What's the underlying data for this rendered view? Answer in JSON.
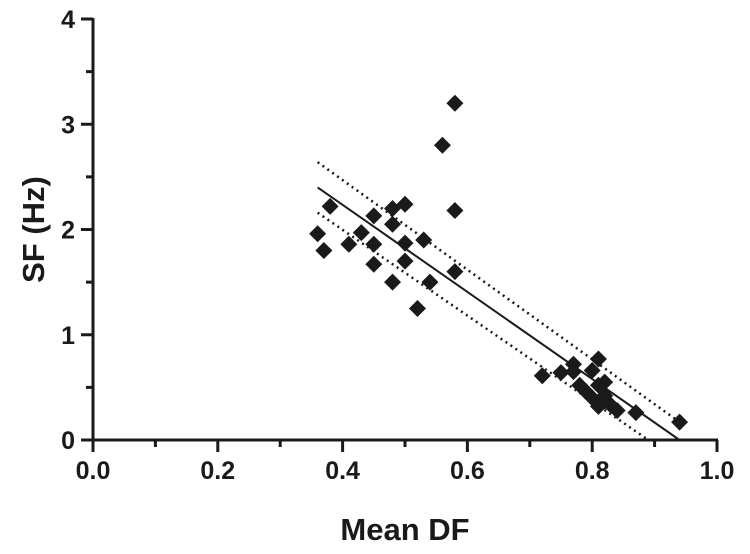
{
  "chart_data": {
    "type": "scatter",
    "xlabel": "Mean DF",
    "ylabel": "SF (Hz)",
    "xlim": [
      0.0,
      1.0
    ],
    "ylim": [
      0,
      4
    ],
    "x_ticks": [
      "0.0",
      "0.2",
      "0.4",
      "0.6",
      "0.8",
      "1.0"
    ],
    "y_ticks": [
      "0",
      "1",
      "2",
      "3",
      "4"
    ],
    "grid": false,
    "legend": "none",
    "marker": "diamond",
    "color": "#1a1a1a",
    "points": [
      {
        "x": 0.36,
        "y": 1.96
      },
      {
        "x": 0.37,
        "y": 1.8
      },
      {
        "x": 0.38,
        "y": 2.22
      },
      {
        "x": 0.41,
        "y": 1.86
      },
      {
        "x": 0.43,
        "y": 1.97
      },
      {
        "x": 0.45,
        "y": 2.13
      },
      {
        "x": 0.45,
        "y": 1.86
      },
      {
        "x": 0.45,
        "y": 1.67
      },
      {
        "x": 0.48,
        "y": 2.2
      },
      {
        "x": 0.48,
        "y": 2.05
      },
      {
        "x": 0.48,
        "y": 1.5
      },
      {
        "x": 0.5,
        "y": 2.24
      },
      {
        "x": 0.5,
        "y": 1.87
      },
      {
        "x": 0.5,
        "y": 1.7
      },
      {
        "x": 0.52,
        "y": 1.25
      },
      {
        "x": 0.53,
        "y": 1.9
      },
      {
        "x": 0.54,
        "y": 1.5
      },
      {
        "x": 0.56,
        "y": 2.8
      },
      {
        "x": 0.58,
        "y": 3.2
      },
      {
        "x": 0.58,
        "y": 2.18
      },
      {
        "x": 0.58,
        "y": 1.6
      },
      {
        "x": 0.72,
        "y": 0.61
      },
      {
        "x": 0.75,
        "y": 0.64
      },
      {
        "x": 0.77,
        "y": 0.72
      },
      {
        "x": 0.77,
        "y": 0.65
      },
      {
        "x": 0.78,
        "y": 0.52
      },
      {
        "x": 0.79,
        "y": 0.46
      },
      {
        "x": 0.8,
        "y": 0.66
      },
      {
        "x": 0.8,
        "y": 0.4
      },
      {
        "x": 0.81,
        "y": 0.77
      },
      {
        "x": 0.81,
        "y": 0.52
      },
      {
        "x": 0.81,
        "y": 0.32
      },
      {
        "x": 0.82,
        "y": 0.55
      },
      {
        "x": 0.82,
        "y": 0.42
      },
      {
        "x": 0.82,
        "y": 0.37
      },
      {
        "x": 0.83,
        "y": 0.33
      },
      {
        "x": 0.84,
        "y": 0.28
      },
      {
        "x": 0.87,
        "y": 0.26
      },
      {
        "x": 0.94,
        "y": 0.17
      }
    ],
    "fit_line": {
      "x": [
        0.36,
        0.94
      ],
      "y": [
        2.4,
        0.0
      ]
    },
    "confidence_upper": {
      "x": [
        0.36,
        0.94
      ],
      "y": [
        2.64,
        0.17
      ]
    },
    "confidence_lower": {
      "x": [
        0.36,
        0.89
      ],
      "y": [
        2.16,
        0.0
      ]
    }
  }
}
